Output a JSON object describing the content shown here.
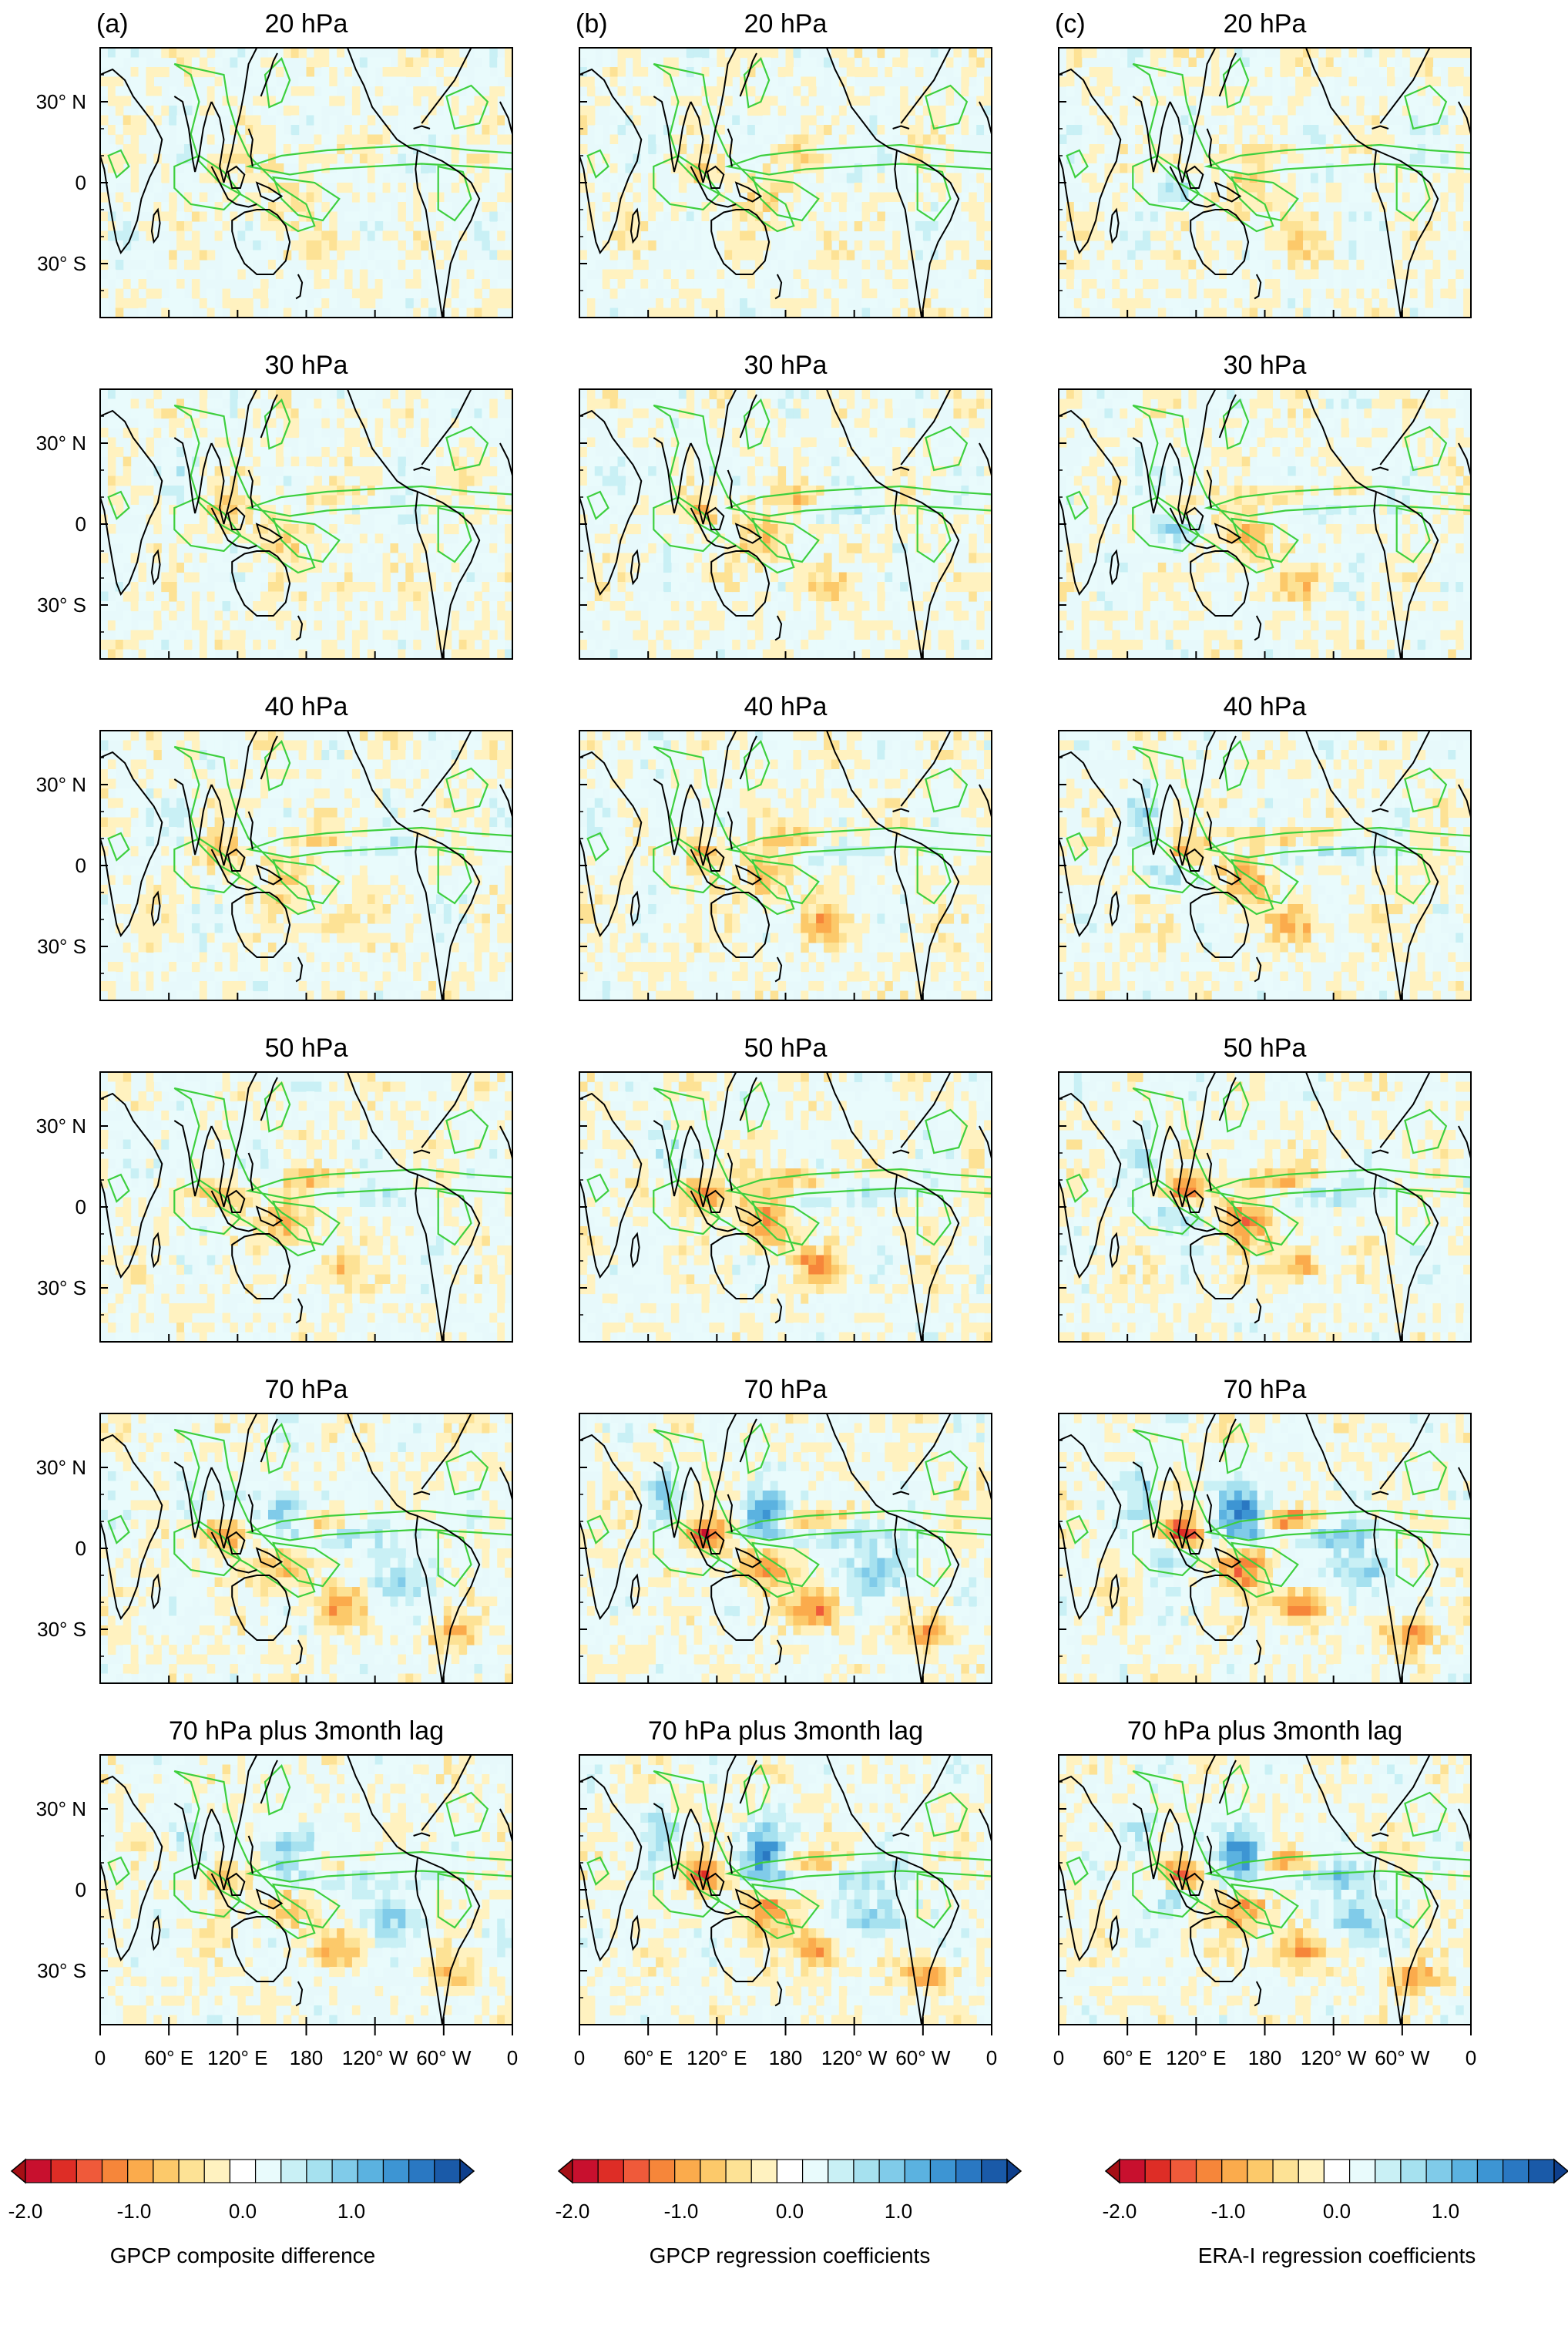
{
  "chart_data": {
    "type": "heatmap",
    "columns": [
      {
        "label": "(a)"
      },
      {
        "label": "(b)"
      },
      {
        "label": "(c)"
      }
    ],
    "rows": [
      {
        "title": "20 hPa"
      },
      {
        "title": "30 hPa"
      },
      {
        "title": "40 hPa"
      },
      {
        "title": "50 hPa"
      },
      {
        "title": "70 hPa"
      },
      {
        "title": "70 hPa plus 3month lag"
      }
    ],
    "lat_ticks": [
      "30° N",
      "0",
      "30° S"
    ],
    "lon_ticks": [
      "0",
      "60° E",
      "120° E",
      "180",
      "120° W",
      "60° W",
      "0"
    ],
    "colorbars": [
      {
        "label": "GPCP composite difference",
        "ticks": [
          "-2.0",
          "-1.0",
          "0.0",
          "1.0"
        ]
      },
      {
        "label": "GPCP regression coefficients",
        "ticks": [
          "-2.0",
          "-1.0",
          "0.0",
          "1.0"
        ]
      },
      {
        "label": "ERA-I regression coefficients",
        "ticks": [
          "-2.0",
          "-1.0",
          "0.0",
          "1.0"
        ]
      }
    ],
    "color_scale": {
      "min": -2.0,
      "max": 2.0,
      "colors": [
        "#a50f15",
        "#c8102e",
        "#de2d26",
        "#ef5a3a",
        "#f6863a",
        "#fbab4c",
        "#fcc96a",
        "#fde295",
        "#fff2c0",
        "#ffffff",
        "#e9fbfc",
        "#c9f0f5",
        "#a6e1ef",
        "#80cbe9",
        "#5bb2e0",
        "#3d95d3",
        "#2a78c2",
        "#1a5aa8",
        "#0e3f8c"
      ]
    },
    "colors": {
      "contour": "#3ecf3e",
      "coastline": "#000000"
    }
  }
}
